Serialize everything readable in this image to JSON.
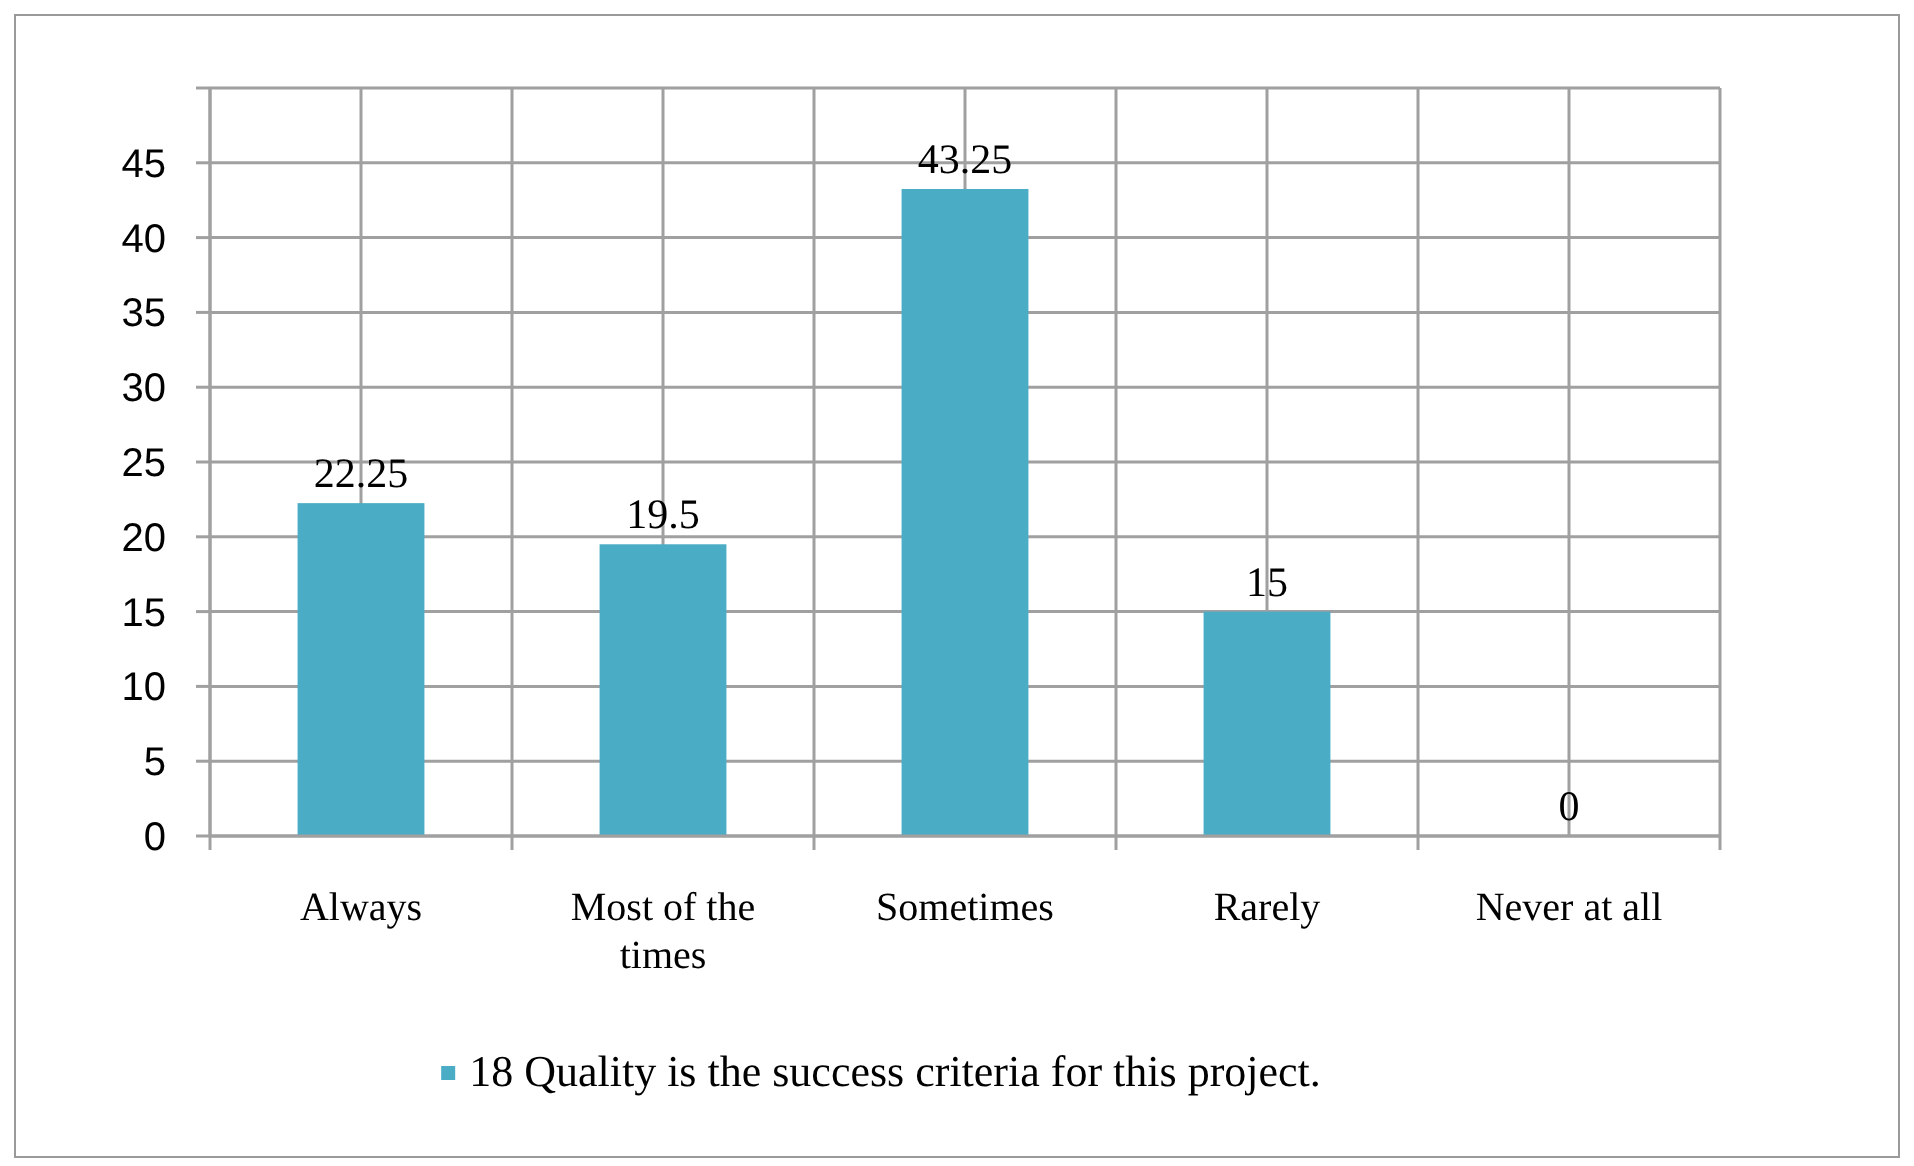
{
  "chart_data": {
    "type": "bar",
    "categories": [
      "Always",
      "Most of the times",
      "Sometimes",
      "Rarely",
      "Never at all"
    ],
    "series": [
      {
        "name": "18 Quality is the success criteria for this project.",
        "color": "#4bacc6",
        "values": [
          22.25,
          19.5,
          43.25,
          15,
          0
        ]
      }
    ],
    "ylim": [
      0,
      50
    ],
    "yticks": [
      0,
      5,
      10,
      15,
      20,
      25,
      30,
      35,
      40,
      45,
      {
        "value": 50,
        "label": null
      }
    ],
    "grid": true,
    "legend": "bottom",
    "data_labels": true
  }
}
